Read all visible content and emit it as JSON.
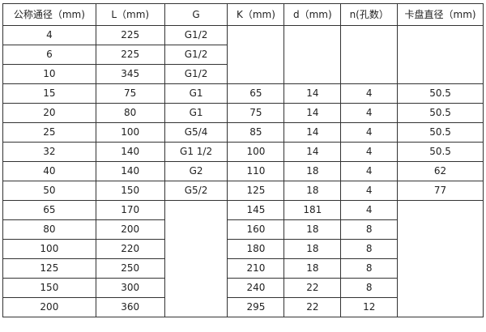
{
  "table": {
    "headers": [
      "公称通径（mm)",
      "L（mm)",
      "G",
      "K（mm)",
      "d（mm)",
      "n(孔数）",
      "卡盘直径（mm)"
    ],
    "rows": [
      [
        "4",
        "225",
        "G1/2",
        "",
        "",
        "",
        ""
      ],
      [
        "6",
        "225",
        "G1/2",
        "",
        "",
        "",
        ""
      ],
      [
        "10",
        "345",
        "G1/2",
        "",
        "",
        "",
        ""
      ],
      [
        "15",
        "75",
        "G1",
        "65",
        "14",
        "4",
        "50.5"
      ],
      [
        "20",
        "80",
        "G1",
        "75",
        "14",
        "4",
        "50.5"
      ],
      [
        "25",
        "100",
        "G5/4",
        "85",
        "14",
        "4",
        "50.5"
      ],
      [
        "32",
        "140",
        "G1  1/2",
        "100",
        "14",
        "4",
        "50.5"
      ],
      [
        "40",
        "140",
        "G2",
        "110",
        "18",
        "4",
        "62"
      ],
      [
        "50",
        "150",
        "G5/2",
        "125",
        "18",
        "4",
        "77"
      ],
      [
        "65",
        "170",
        "",
        "145",
        "181",
        "4",
        ""
      ],
      [
        "80",
        "200",
        "",
        "160",
        "18",
        "8",
        ""
      ],
      [
        "100",
        "220",
        "",
        "180",
        "18",
        "8",
        ""
      ],
      [
        "125",
        "250",
        "",
        "210",
        "18",
        "8",
        ""
      ],
      [
        "150",
        "300",
        "",
        "240",
        "22",
        "8",
        ""
      ],
      [
        "200",
        "360",
        "",
        "295",
        "22",
        "12",
        ""
      ]
    ]
  }
}
